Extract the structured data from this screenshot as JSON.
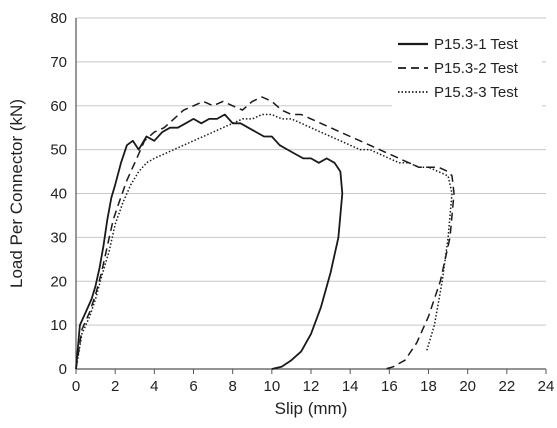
{
  "chart_data": {
    "type": "line",
    "xlabel": "Slip (mm)",
    "ylabel": "Load Per Connector (kN)",
    "xlim": [
      0,
      24
    ],
    "ylim": [
      0,
      80
    ],
    "x_ticks": [
      0,
      2,
      4,
      6,
      8,
      10,
      12,
      14,
      16,
      18,
      20,
      22,
      24
    ],
    "y_ticks": [
      0,
      10,
      20,
      30,
      40,
      50,
      60,
      70,
      80
    ],
    "grid": "horizontal",
    "legend_position": "top-right",
    "series": [
      {
        "name": "P15.3-1 Test",
        "line_style": "solid",
        "color": "#1a1a1a",
        "x": [
          0,
          0.2,
          0.5,
          0.8,
          1.0,
          1.2,
          1.4,
          1.6,
          1.8,
          2.0,
          2.3,
          2.6,
          2.9,
          3.2,
          3.6,
          4.0,
          4.4,
          4.8,
          5.2,
          5.6,
          6.0,
          6.4,
          6.8,
          7.2,
          7.6,
          8.0,
          8.4,
          8.8,
          9.2,
          9.6,
          10.0,
          10.4,
          10.8,
          11.2,
          11.6,
          12.0,
          12.4,
          12.8,
          13.2,
          13.5,
          13.6,
          13.4,
          13.0,
          12.5,
          12.0,
          11.5,
          11.0,
          10.5,
          10.0
        ],
        "y": [
          0,
          10,
          13,
          16,
          19,
          23,
          28,
          34,
          39,
          42,
          47,
          51,
          52,
          50,
          53,
          52,
          54,
          55,
          55,
          56,
          57,
          56,
          57,
          57,
          58,
          56,
          56,
          55,
          54,
          53,
          53,
          51,
          50,
          49,
          48,
          48,
          47,
          48,
          47,
          45,
          40,
          30,
          22,
          14,
          8,
          4,
          2,
          0.5,
          0
        ]
      },
      {
        "name": "P15.3-2 Test",
        "line_style": "dashed",
        "color": "#1a1a1a",
        "x": [
          0,
          0.3,
          0.7,
          1.0,
          1.3,
          1.6,
          1.9,
          2.2,
          2.6,
          3.0,
          3.5,
          4.0,
          4.5,
          5.0,
          5.5,
          6.0,
          6.5,
          7.0,
          7.5,
          8.0,
          8.5,
          9.0,
          9.5,
          10.0,
          10.5,
          11.0,
          11.5,
          12.0,
          12.5,
          13.0,
          13.5,
          14.0,
          14.5,
          15.0,
          15.5,
          16.0,
          16.5,
          17.0,
          17.5,
          18.0,
          18.5,
          19.0,
          19.2,
          19.3,
          19.1,
          18.6,
          18.0,
          17.4,
          16.8,
          16.2,
          15.8
        ],
        "y": [
          0,
          9,
          13,
          17,
          22,
          28,
          34,
          38,
          43,
          47,
          52,
          54,
          55,
          57,
          59,
          60,
          61,
          60,
          61,
          60,
          59,
          61,
          62,
          61,
          59,
          58,
          58,
          57,
          56,
          55,
          54,
          53,
          52,
          51,
          50,
          49,
          48,
          47,
          46,
          46,
          46,
          45,
          44,
          40,
          30,
          20,
          12,
          6,
          2,
          0.5,
          0
        ]
      },
      {
        "name": "P15.3-3 Test",
        "line_style": "dotted",
        "color": "#1a1a1a",
        "x": [
          0,
          0.3,
          0.7,
          1.0,
          1.3,
          1.7,
          2.0,
          2.4,
          2.8,
          3.2,
          3.6,
          4.0,
          4.5,
          5.0,
          5.5,
          6.0,
          6.5,
          7.0,
          7.5,
          8.0,
          8.5,
          9.0,
          9.5,
          10.0,
          10.5,
          11.0,
          11.5,
          12.0,
          12.5,
          13.0,
          13.5,
          14.0,
          14.5,
          15.0,
          15.5,
          16.0,
          16.5,
          17.0,
          17.5,
          18.0,
          18.5,
          19.0,
          19.2,
          19.0,
          18.7,
          18.3,
          17.9
        ],
        "y": [
          0,
          8,
          12,
          16,
          21,
          27,
          33,
          38,
          42,
          45,
          47,
          48,
          49,
          50,
          51,
          52,
          53,
          54,
          55,
          56,
          57,
          57,
          58,
          58,
          57,
          57,
          56,
          55,
          54,
          53,
          52,
          51,
          50,
          50,
          49,
          48,
          47,
          47,
          46,
          46,
          45,
          44,
          40,
          30,
          20,
          10,
          4
        ]
      }
    ]
  }
}
